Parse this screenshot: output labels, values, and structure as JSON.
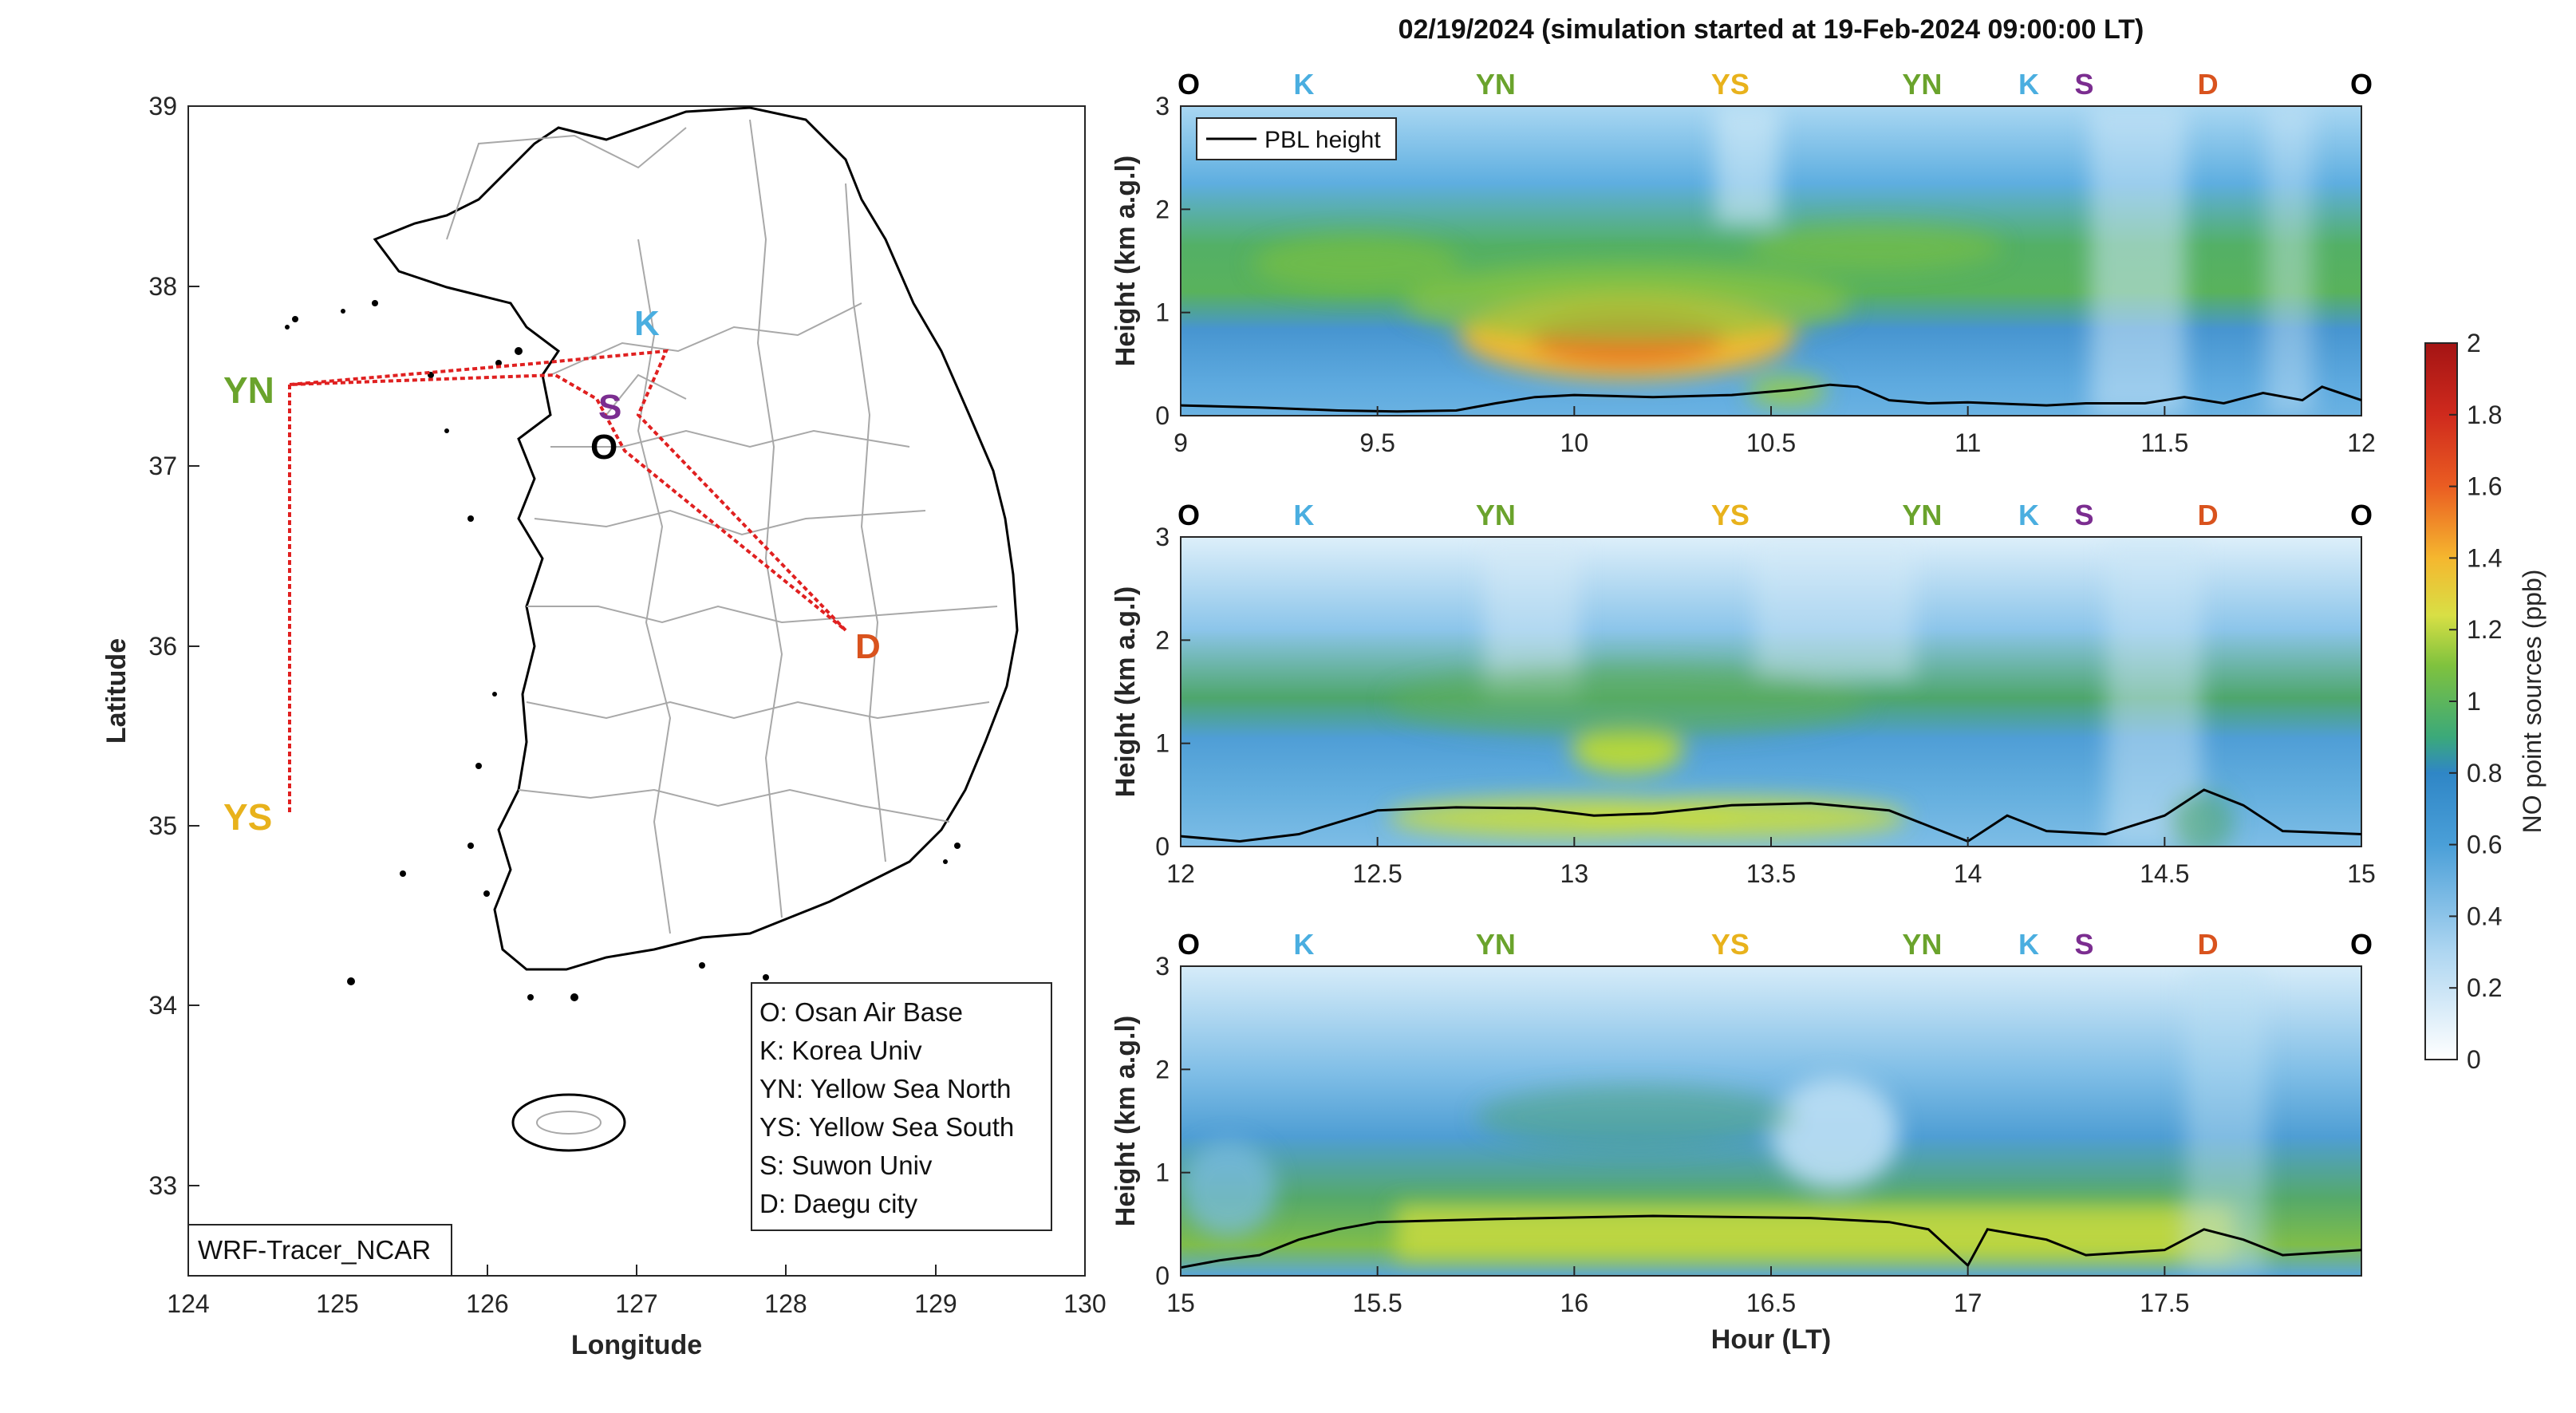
{
  "title": "02/19/2024 (simulation started at 19-Feb-2024 09:00:00 LT)",
  "colors": {
    "O": "#000000",
    "K": "#4aaee0",
    "YN": "#6aa32c",
    "YS": "#e8b21c",
    "S": "#7b2d90",
    "D": "#d9531e",
    "route": "#e02020",
    "pbl": "#000000"
  },
  "map": {
    "xlabel": "Longitude",
    "ylabel": "Latitude",
    "xticks": [
      "124",
      "125",
      "126",
      "127",
      "128",
      "129",
      "130"
    ],
    "yticks": [
      "33",
      "34",
      "35",
      "36",
      "37",
      "38",
      "39"
    ],
    "xlim": [
      124,
      130
    ],
    "ylim": [
      32.5,
      39
    ],
    "model_label": "WRF-Tracer_NCAR",
    "sites": [
      {
        "code": "K",
        "lon": 127.03,
        "lat": 37.59
      },
      {
        "code": "S",
        "lon": 126.97,
        "lat": 37.29
      },
      {
        "code": "O",
        "lon": 126.85,
        "lat": 37.09
      },
      {
        "code": "D",
        "lon": 128.6,
        "lat": 35.87
      },
      {
        "code": "YN",
        "lon": 124.7,
        "lat": 37.45
      },
      {
        "code": "YS",
        "lon": 124.7,
        "lat": 35.05
      }
    ],
    "legend": [
      "O: Osan Air Base",
      "K: Korea Univ",
      "YN: Yellow Sea North",
      "YS: Yellow Sea South",
      "S: Suwon Univ",
      "D: Daegu city"
    ]
  },
  "chart_data": [
    {
      "type": "heatmap",
      "xlim": [
        9,
        12
      ],
      "ylim": [
        0,
        3
      ],
      "xticks": [
        "9",
        "9.5",
        "10",
        "10.5",
        "11",
        "11.5",
        "12"
      ],
      "yticks": [
        "0",
        "1",
        "2",
        "3"
      ],
      "ylabel": "Height (km a.g.l)",
      "site_labels": [
        "O",
        "K",
        "YN",
        "YS",
        "YN",
        "K",
        "S",
        "D",
        "O"
      ],
      "legend": "PBL height",
      "pbl": [
        [
          9.0,
          0.1
        ],
        [
          9.2,
          0.08
        ],
        [
          9.4,
          0.05
        ],
        [
          9.55,
          0.04
        ],
        [
          9.7,
          0.05
        ],
        [
          9.8,
          0.12
        ],
        [
          9.9,
          0.18
        ],
        [
          10.0,
          0.2
        ],
        [
          10.2,
          0.18
        ],
        [
          10.4,
          0.2
        ],
        [
          10.55,
          0.25
        ],
        [
          10.65,
          0.3
        ],
        [
          10.72,
          0.28
        ],
        [
          10.8,
          0.15
        ],
        [
          10.9,
          0.12
        ],
        [
          11.0,
          0.13
        ],
        [
          11.2,
          0.1
        ],
        [
          11.3,
          0.12
        ],
        [
          11.45,
          0.12
        ],
        [
          11.55,
          0.18
        ],
        [
          11.65,
          0.12
        ],
        [
          11.75,
          0.22
        ],
        [
          11.85,
          0.15
        ],
        [
          11.9,
          0.28
        ],
        [
          12.0,
          0.15
        ]
      ]
    },
    {
      "type": "heatmap",
      "xlim": [
        12,
        15
      ],
      "ylim": [
        0,
        3
      ],
      "xticks": [
        "12",
        "12.5",
        "13",
        "13.5",
        "14",
        "14.5",
        "15"
      ],
      "yticks": [
        "0",
        "1",
        "2",
        "3"
      ],
      "ylabel": "Height (km a.g.l)",
      "site_labels": [
        "O",
        "K",
        "YN",
        "YS",
        "YN",
        "K",
        "S",
        "D",
        "O"
      ],
      "pbl": [
        [
          12.0,
          0.1
        ],
        [
          12.15,
          0.05
        ],
        [
          12.3,
          0.12
        ],
        [
          12.5,
          0.35
        ],
        [
          12.7,
          0.38
        ],
        [
          12.9,
          0.37
        ],
        [
          13.05,
          0.3
        ],
        [
          13.2,
          0.32
        ],
        [
          13.4,
          0.4
        ],
        [
          13.6,
          0.42
        ],
        [
          13.8,
          0.35
        ],
        [
          13.9,
          0.2
        ],
        [
          14.0,
          0.05
        ],
        [
          14.1,
          0.3
        ],
        [
          14.2,
          0.15
        ],
        [
          14.35,
          0.12
        ],
        [
          14.5,
          0.3
        ],
        [
          14.6,
          0.55
        ],
        [
          14.7,
          0.4
        ],
        [
          14.8,
          0.15
        ],
        [
          15.0,
          0.12
        ]
      ]
    },
    {
      "type": "heatmap",
      "xlim": [
        15,
        18
      ],
      "ylim": [
        0,
        3
      ],
      "xticks": [
        "15",
        "15.5",
        "16",
        "16.5",
        "17",
        "17.5"
      ],
      "yticks": [
        "0",
        "1",
        "2",
        "3"
      ],
      "ylabel": "Height (km a.g.l)",
      "xlabel": "Hour (LT)",
      "site_labels": [
        "O",
        "K",
        "YN",
        "YS",
        "YN",
        "K",
        "S",
        "D",
        "O"
      ],
      "pbl": [
        [
          15.0,
          0.08
        ],
        [
          15.1,
          0.15
        ],
        [
          15.2,
          0.2
        ],
        [
          15.3,
          0.35
        ],
        [
          15.4,
          0.45
        ],
        [
          15.5,
          0.52
        ],
        [
          15.8,
          0.55
        ],
        [
          16.2,
          0.58
        ],
        [
          16.6,
          0.56
        ],
        [
          16.8,
          0.52
        ],
        [
          16.9,
          0.45
        ],
        [
          17.0,
          0.1
        ],
        [
          17.05,
          0.45
        ],
        [
          17.2,
          0.35
        ],
        [
          17.3,
          0.2
        ],
        [
          17.5,
          0.25
        ],
        [
          17.6,
          0.45
        ],
        [
          17.7,
          0.35
        ],
        [
          17.8,
          0.2
        ],
        [
          18.0,
          0.25
        ]
      ]
    }
  ],
  "colorbar": {
    "label": "NO point sources (ppb)",
    "ticks": [
      "0",
      "0.2",
      "0.4",
      "0.6",
      "0.8",
      "1",
      "1.2",
      "1.4",
      "1.6",
      "1.8",
      "2"
    ],
    "range": [
      0,
      2
    ]
  }
}
